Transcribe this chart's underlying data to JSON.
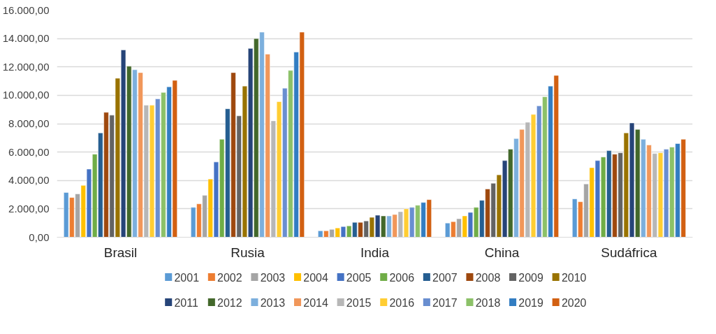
{
  "chart_data": {
    "type": "bar",
    "categories": [
      "Brasil",
      "Rusia",
      "India",
      "China",
      "Sudáfrica"
    ],
    "ylim": [
      0,
      16000
    ],
    "yticks": [
      {
        "value": 0,
        "label": "0,00"
      },
      {
        "value": 2000,
        "label": "2.000,00"
      },
      {
        "value": 4000,
        "label": "4.000,00"
      },
      {
        "value": 6000,
        "label": "6.000,00"
      },
      {
        "value": 8000,
        "label": "8.000,00"
      },
      {
        "value": 10000,
        "label": "10.000,00"
      },
      {
        "value": 12000,
        "label": "12.000,00"
      },
      {
        "value": 14000,
        "label": "14.000,00"
      },
      {
        "value": 16000,
        "label": "16.000,00"
      }
    ],
    "grid": "y",
    "legend": "bottom",
    "series": [
      {
        "name": "2001",
        "color": "#5b9bd5",
        "values": [
          3150,
          2100,
          450,
          1000,
          2700
        ]
      },
      {
        "name": "2002",
        "color": "#ed7d31",
        "values": [
          2800,
          2350,
          450,
          1100,
          2500
        ]
      },
      {
        "name": "2003",
        "color": "#a5a5a5",
        "values": [
          3050,
          2950,
          550,
          1300,
          3750
        ]
      },
      {
        "name": "2004",
        "color": "#ffc000",
        "values": [
          3650,
          4100,
          650,
          1500,
          4900
        ]
      },
      {
        "name": "2005",
        "color": "#4472c4",
        "values": [
          4800,
          5300,
          750,
          1750,
          5400
        ]
      },
      {
        "name": "2006",
        "color": "#70ad47",
        "values": [
          5850,
          6900,
          800,
          2100,
          5650
        ]
      },
      {
        "name": "2007",
        "color": "#255e91",
        "values": [
          7350,
          9050,
          1050,
          2600,
          6100
        ]
      },
      {
        "name": "2008",
        "color": "#9e480e",
        "values": [
          8800,
          11600,
          1050,
          3400,
          5850
        ]
      },
      {
        "name": "2009",
        "color": "#636363",
        "values": [
          8600,
          8550,
          1150,
          3800,
          5950
        ]
      },
      {
        "name": "2010",
        "color": "#997300",
        "values": [
          11200,
          10650,
          1400,
          4400,
          7350
        ]
      },
      {
        "name": "2011",
        "color": "#264478",
        "values": [
          13200,
          13300,
          1550,
          5400,
          8050
        ]
      },
      {
        "name": "2012",
        "color": "#43682b",
        "values": [
          12050,
          14000,
          1500,
          6200,
          7600
        ]
      },
      {
        "name": "2013",
        "color": "#7cafdd",
        "values": [
          11800,
          14450,
          1500,
          6950,
          6900
        ]
      },
      {
        "name": "2014",
        "color": "#f1975a",
        "values": [
          11600,
          12900,
          1600,
          7600,
          6500
        ]
      },
      {
        "name": "2015",
        "color": "#b7b7b7",
        "values": [
          9300,
          8200,
          1800,
          8100,
          5900
        ]
      },
      {
        "name": "2016",
        "color": "#ffcd33",
        "values": [
          9300,
          9550,
          2000,
          8650,
          5950
        ]
      },
      {
        "name": "2017",
        "color": "#698ed0",
        "values": [
          9750,
          10500,
          2100,
          9250,
          6200
        ]
      },
      {
        "name": "2018",
        "color": "#8cc168",
        "values": [
          10200,
          11750,
          2250,
          9900,
          6350
        ]
      },
      {
        "name": "2019",
        "color": "#327dc2",
        "values": [
          10600,
          13050,
          2450,
          10650,
          6600
        ]
      },
      {
        "name": "2020",
        "color": "#d26012",
        "values": [
          11050,
          14450,
          2650,
          11400,
          6900
        ]
      }
    ]
  }
}
